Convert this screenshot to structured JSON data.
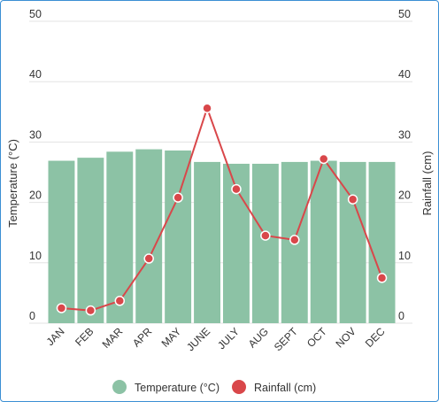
{
  "chart_data": {
    "type": "bar+line",
    "categories": [
      "JAN",
      "FEB",
      "MAR",
      "APR",
      "MAY",
      "JUNE",
      "JULY",
      "AUG",
      "SEPT",
      "OCT",
      "NOV",
      "DEC"
    ],
    "series": [
      {
        "name": "Temperature (°C)",
        "type": "bar",
        "axis": "left",
        "color": "#8cc2a5",
        "values": [
          26.9,
          27.4,
          28.4,
          28.8,
          28.6,
          26.7,
          26.4,
          26.4,
          26.7,
          26.9,
          26.7,
          26.7
        ]
      },
      {
        "name": "Rainfall (cm)",
        "type": "line",
        "axis": "right",
        "color": "#d9474a",
        "values": [
          2.5,
          2.1,
          3.7,
          10.7,
          20.8,
          35.6,
          22.2,
          14.5,
          13.8,
          27.2,
          20.5,
          7.5
        ]
      }
    ],
    "y_left": {
      "label": "Temperature (°C)",
      "ticks": [
        0,
        10,
        20,
        30,
        40,
        50
      ],
      "range": [
        0,
        50
      ]
    },
    "y_right": {
      "label": "Rainfall (cm)",
      "ticks": [
        0,
        10,
        20,
        30,
        40,
        50
      ],
      "range": [
        0,
        50
      ]
    },
    "grid": true,
    "legend_position": "bottom"
  }
}
